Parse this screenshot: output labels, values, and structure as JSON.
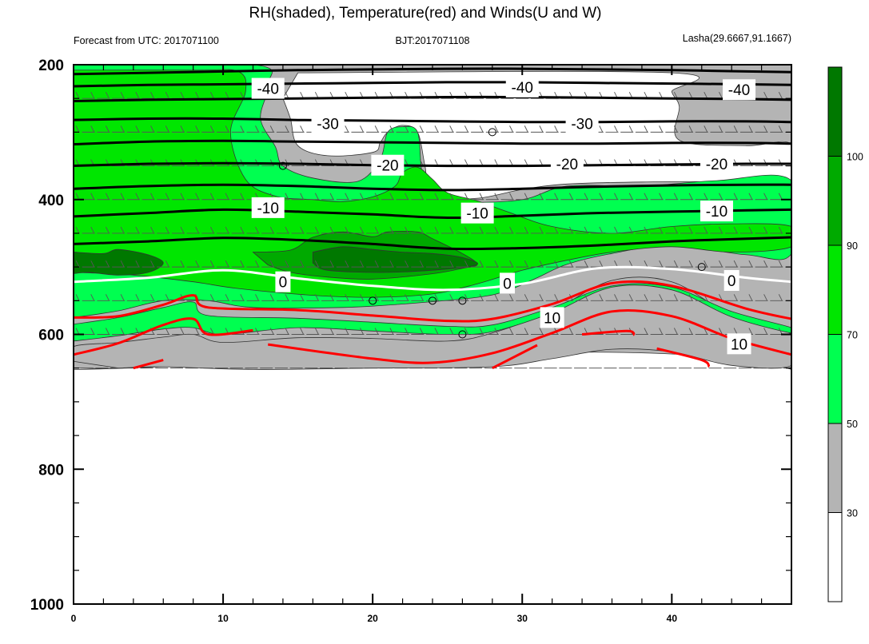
{
  "title": "RH(shaded), Temperature(red) and Winds(U and W)",
  "subtitle_left": "Forecast from UTC: 2017071100",
  "subtitle_center": "BJT:2017071108",
  "subtitle_right": "Lasha(29.6667,91.1667)",
  "chart_data": {
    "type": "contour-cross-section",
    "x_range": [
      0,
      48
    ],
    "y_range": [
      200,
      1000
    ],
    "y_axis_inverted": true,
    "x_ticks": [
      "0",
      "10",
      "20",
      "30",
      "40"
    ],
    "x_tick_values": [
      0,
      10,
      20,
      30,
      40
    ],
    "y_ticks": [
      "200",
      "400",
      "600",
      "800",
      "1000"
    ],
    "y_tick_values": [
      200,
      400,
      600,
      800,
      1000
    ],
    "colorbar": {
      "levels": [
        "30",
        "50",
        "70",
        "90",
        "100"
      ],
      "colors": [
        "#ffffff",
        "#b4b4b4",
        "#00ff50",
        "#00e600",
        "#00aa00",
        "#007800"
      ]
    },
    "rh_fill_colors": {
      "gray": "#b4b4b4",
      "light_green": "#00ff50",
      "green": "#00e600",
      "mid_green": "#00aa00",
      "dark_green": "#007800"
    },
    "temperature_contours": [
      {
        "level": "-40",
        "color": "#000000",
        "points": [
          [
            0,
            214
          ],
          [
            5,
            212
          ],
          [
            10,
            210
          ],
          [
            15,
            208
          ],
          [
            20,
            207
          ],
          [
            25,
            206
          ],
          [
            30,
            206
          ],
          [
            35,
            207
          ],
          [
            40,
            208
          ],
          [
            45,
            210
          ],
          [
            48,
            211
          ]
        ]
      },
      {
        "level": "-40",
        "color": "#000000",
        "points": [
          [
            0,
            232
          ],
          [
            5,
            230
          ],
          [
            10,
            229
          ],
          [
            15,
            228
          ],
          [
            20,
            227
          ],
          [
            25,
            226
          ],
          [
            30,
            226
          ],
          [
            35,
            227
          ],
          [
            40,
            228
          ],
          [
            45,
            229
          ],
          [
            48,
            230
          ]
        ]
      },
      {
        "level": "-30",
        "color": "#000000",
        "points": [
          [
            0,
            254
          ],
          [
            5,
            252
          ],
          [
            10,
            251
          ],
          [
            15,
            250
          ],
          [
            20,
            249
          ],
          [
            25,
            248
          ],
          [
            30,
            248
          ],
          [
            35,
            249
          ],
          [
            40,
            250
          ],
          [
            45,
            251
          ],
          [
            48,
            252
          ]
        ]
      },
      {
        "level": "-30",
        "color": "#000000",
        "points": [
          [
            0,
            282
          ],
          [
            5,
            280
          ],
          [
            10,
            280
          ],
          [
            15,
            282
          ],
          [
            20,
            283
          ],
          [
            25,
            284
          ],
          [
            30,
            285
          ],
          [
            35,
            285
          ],
          [
            40,
            284
          ],
          [
            45,
            284
          ],
          [
            48,
            285
          ]
        ]
      },
      {
        "level": "-20",
        "color": "#000000",
        "points": [
          [
            0,
            318
          ],
          [
            5,
            314
          ],
          [
            10,
            313
          ],
          [
            15,
            314
          ],
          [
            20,
            315
          ],
          [
            25,
            316
          ],
          [
            30,
            317
          ],
          [
            35,
            317
          ],
          [
            40,
            316
          ],
          [
            45,
            316
          ],
          [
            48,
            317
          ]
        ]
      },
      {
        "level": "-20",
        "color": "#000000",
        "points": [
          [
            0,
            350
          ],
          [
            5,
            347
          ],
          [
            10,
            346
          ],
          [
            15,
            347
          ],
          [
            20,
            349
          ],
          [
            25,
            350
          ],
          [
            30,
            350
          ],
          [
            35,
            349
          ],
          [
            40,
            348
          ],
          [
            45,
            347
          ],
          [
            48,
            347
          ]
        ]
      },
      {
        "level": "-10",
        "color": "#000000",
        "points": [
          [
            0,
            384
          ],
          [
            5,
            380
          ],
          [
            10,
            378
          ],
          [
            15,
            380
          ],
          [
            20,
            384
          ],
          [
            25,
            386
          ],
          [
            30,
            384
          ],
          [
            35,
            381
          ],
          [
            40,
            379
          ],
          [
            45,
            378
          ],
          [
            48,
            378
          ]
        ]
      },
      {
        "level": "-10",
        "color": "#000000",
        "points": [
          [
            0,
            425
          ],
          [
            5,
            420
          ],
          [
            10,
            415
          ],
          [
            15,
            418
          ],
          [
            20,
            422
          ],
          [
            25,
            427
          ],
          [
            30,
            424
          ],
          [
            35,
            420
          ],
          [
            40,
            418
          ],
          [
            45,
            416
          ],
          [
            48,
            415
          ]
        ]
      },
      {
        "level": "-10",
        "color": "#000000",
        "points": [
          [
            0,
            466
          ],
          [
            5,
            462
          ],
          [
            10,
            457
          ],
          [
            15,
            460
          ],
          [
            20,
            466
          ],
          [
            25,
            473
          ],
          [
            30,
            472
          ],
          [
            35,
            468
          ],
          [
            40,
            462
          ],
          [
            45,
            458
          ],
          [
            48,
            456
          ]
        ]
      },
      {
        "level": "0",
        "color": "#ffffff",
        "points": [
          [
            0,
            522
          ],
          [
            5,
            516
          ],
          [
            10,
            505
          ],
          [
            15,
            517
          ],
          [
            20,
            528
          ],
          [
            25,
            534
          ],
          [
            30,
            525
          ],
          [
            35,
            502
          ],
          [
            40,
            503
          ],
          [
            45,
            516
          ],
          [
            48,
            522
          ]
        ]
      },
      {
        "level": "10",
        "color": "#ff0000",
        "points": [
          [
            0,
            575
          ],
          [
            3,
            573
          ],
          [
            6,
            556
          ],
          [
            8,
            542
          ],
          [
            9,
            560
          ],
          [
            15,
            564
          ],
          [
            20,
            572
          ],
          [
            25,
            580
          ],
          [
            28,
            577
          ],
          [
            32,
            555
          ],
          [
            36,
            524
          ],
          [
            40,
            528
          ],
          [
            45,
            562
          ],
          [
            48,
            577
          ]
        ]
      },
      {
        "level": "10",
        "color": "#ff0000",
        "points": [
          [
            0,
            630
          ],
          [
            3,
            613
          ],
          [
            6,
            586
          ],
          [
            8,
            577
          ],
          [
            9,
            600
          ],
          [
            12,
            594
          ]
        ]
      },
      {
        "level": "10",
        "color": "#ff0000",
        "points": [
          [
            13,
            615
          ],
          [
            20,
            636
          ],
          [
            24,
            642
          ],
          [
            28,
            628
          ],
          [
            32,
            598
          ],
          [
            36,
            566
          ],
          [
            40,
            573
          ],
          [
            44,
            606
          ],
          [
            48,
            630
          ]
        ]
      },
      {
        "level": "10",
        "color": "#ff0000",
        "points": [
          [
            4,
            650
          ],
          [
            6,
            638
          ]
        ]
      },
      {
        "level": "10",
        "color": "#ff0000",
        "points": [
          [
            28,
            650
          ],
          [
            31,
            616
          ]
        ]
      },
      {
        "level": "10",
        "color": "#ff0000",
        "points": [
          [
            34,
            600
          ],
          [
            37,
            595
          ],
          [
            37.5,
            601
          ]
        ]
      },
      {
        "level": "10",
        "color": "#ff0000",
        "points": [
          [
            39,
            621
          ],
          [
            42,
            638
          ],
          [
            42.5,
            648
          ]
        ]
      }
    ],
    "temperature_labels": [
      {
        "text": "-40",
        "x": 13,
        "y": 235,
        "color": "#000000"
      },
      {
        "text": "-40",
        "x": 30,
        "y": 233,
        "color": "#000000"
      },
      {
        "text": "-40",
        "x": 44.5,
        "y": 237,
        "color": "#000000"
      },
      {
        "text": "-30",
        "x": 17,
        "y": 287,
        "color": "#000000"
      },
      {
        "text": "-30",
        "x": 34,
        "y": 287,
        "color": "#000000"
      },
      {
        "text": "-20",
        "x": 21,
        "y": 349,
        "color": "#000000"
      },
      {
        "text": "-20",
        "x": 33,
        "y": 347,
        "color": "#000000"
      },
      {
        "text": "-20",
        "x": 43,
        "y": 347,
        "color": "#000000"
      },
      {
        "text": "-10",
        "x": 13,
        "y": 412,
        "color": "#000000"
      },
      {
        "text": "-10",
        "x": 27,
        "y": 420,
        "color": "#000000"
      },
      {
        "text": "-10",
        "x": 43,
        "y": 417,
        "color": "#000000"
      },
      {
        "text": "0",
        "x": 14,
        "y": 522,
        "color": "#000000"
      },
      {
        "text": "0",
        "x": 29,
        "y": 524,
        "color": "#000000"
      },
      {
        "text": "0",
        "x": 44,
        "y": 520,
        "color": "#000000"
      },
      {
        "text": "10",
        "x": 32,
        "y": 575,
        "color": "#000000"
      },
      {
        "text": "10",
        "x": 44.5,
        "y": 614,
        "color": "#000000"
      }
    ],
    "wind_barb_rows": [
      200,
      250,
      300,
      350,
      400,
      450,
      500,
      550,
      600,
      650
    ],
    "calm_markers": [
      [
        14,
        350
      ],
      [
        28,
        300
      ],
      [
        20,
        550
      ],
      [
        24,
        550
      ],
      [
        26,
        550
      ],
      [
        26,
        600
      ],
      [
        42,
        500
      ]
    ]
  }
}
